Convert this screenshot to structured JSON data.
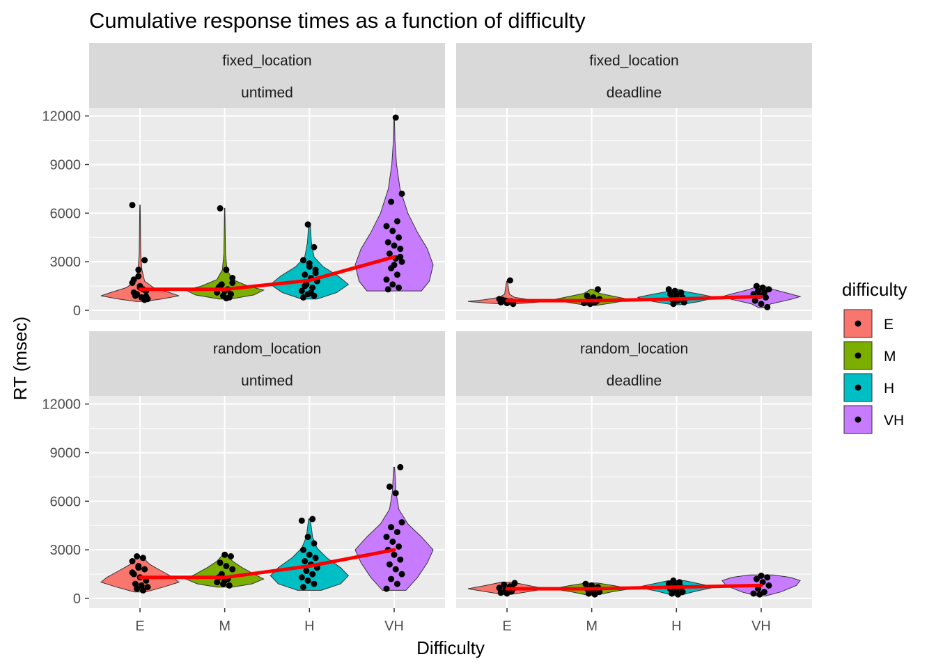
{
  "chart_data": {
    "type": "violin",
    "title": "Cumulative response times as a function of difficulty",
    "xlabel": "Difficulty",
    "ylabel": "RT (msec)",
    "categories": [
      "E",
      "M",
      "H",
      "VH"
    ],
    "yticks": [
      0,
      3000,
      6000,
      9000,
      12000
    ],
    "ylim": [
      -600,
      12500
    ],
    "legend": {
      "title": "difficulty",
      "position": "right",
      "entries": [
        {
          "label": "E",
          "color": "#F8766D"
        },
        {
          "label": "M",
          "color": "#7CAE00"
        },
        {
          "label": "H",
          "color": "#00BFC4"
        },
        {
          "label": "VH",
          "color": "#C77CFF"
        }
      ]
    },
    "mean_line_color": "#FF0000",
    "panels": [
      {
        "strip1": "fixed_location",
        "strip2": "untimed",
        "means": [
          1300,
          1300,
          1850,
          3300
        ],
        "violins": [
          {
            "cat": "E",
            "min": 550,
            "max": 6500,
            "profile": [
              [
                550,
                0.1
              ],
              [
                700,
                0.55
              ],
              [
                900,
                1
              ],
              [
                1100,
                0.75
              ],
              [
                1400,
                0.35
              ],
              [
                1800,
                0.12
              ],
              [
                2500,
                0.05
              ],
              [
                3500,
                0.02
              ],
              [
                6500,
                0.005
              ]
            ]
          },
          {
            "cat": "M",
            "min": 700,
            "max": 6300,
            "profile": [
              [
                700,
                0.15
              ],
              [
                950,
                0.75
              ],
              [
                1250,
                1
              ],
              [
                1500,
                0.6
              ],
              [
                1900,
                0.2
              ],
              [
                2500,
                0.06
              ],
              [
                3500,
                0.02
              ],
              [
                6300,
                0.005
              ]
            ]
          },
          {
            "cat": "H",
            "min": 700,
            "max": 5300,
            "profile": [
              [
                700,
                0.2
              ],
              [
                1100,
                0.7
              ],
              [
                1600,
                1
              ],
              [
                2100,
                0.75
              ],
              [
                2700,
                0.35
              ],
              [
                3300,
                0.12
              ],
              [
                4200,
                0.05
              ],
              [
                5300,
                0.02
              ]
            ]
          },
          {
            "cat": "VH",
            "min": 1200,
            "max": 11900,
            "profile": [
              [
                1200,
                0.7
              ],
              [
                1800,
                0.9
              ],
              [
                2800,
                1
              ],
              [
                3800,
                0.85
              ],
              [
                4800,
                0.6
              ],
              [
                6000,
                0.35
              ],
              [
                7500,
                0.15
              ],
              [
                9000,
                0.06
              ],
              [
                10500,
                0.02
              ],
              [
                11900,
                0.005
              ]
            ]
          }
        ],
        "points": [
          [
            6500,
            2500,
            3100,
            1900,
            1500,
            1200,
            900,
            800,
            700,
            1000,
            1300,
            1700,
            2100,
            650,
            1100,
            1400,
            850,
            950
          ],
          [
            6300,
            2500,
            2000,
            1600,
            1300,
            1100,
            900,
            800,
            1400,
            1200,
            1000,
            1500,
            750,
            1700
          ],
          [
            5300,
            3900,
            3100,
            2900,
            2500,
            2200,
            2000,
            1800,
            1600,
            1400,
            1200,
            1000,
            900,
            800,
            2700,
            2300,
            1500,
            1100
          ],
          [
            11900,
            7200,
            6700,
            5500,
            5200,
            4900,
            4500,
            4200,
            4000,
            3800,
            3500,
            3200,
            3000,
            2600,
            2200,
            1900,
            1600,
            1400,
            1300,
            2800,
            3300
          ]
        ]
      },
      {
        "strip1": "fixed_location",
        "strip2": "deadline",
        "means": [
          600,
          600,
          700,
          850
        ],
        "violins": [
          {
            "cat": "E",
            "min": 400,
            "max": 1800,
            "profile": [
              [
                400,
                0.1
              ],
              [
                450,
                0.5
              ],
              [
                550,
                1
              ],
              [
                650,
                0.6
              ],
              [
                800,
                0.2
              ],
              [
                1000,
                0.06
              ],
              [
                1800,
                0.01
              ]
            ]
          },
          {
            "cat": "M",
            "min": 300,
            "max": 1300,
            "profile": [
              [
                300,
                0.1
              ],
              [
                450,
                0.5
              ],
              [
                650,
                1
              ],
              [
                850,
                0.6
              ],
              [
                1050,
                0.2
              ],
              [
                1300,
                0.03
              ]
            ]
          },
          {
            "cat": "H",
            "min": 350,
            "max": 1300,
            "profile": [
              [
                350,
                0.1
              ],
              [
                550,
                0.6
              ],
              [
                800,
                1
              ],
              [
                1000,
                0.6
              ],
              [
                1150,
                0.25
              ],
              [
                1300,
                0.05
              ]
            ]
          },
          {
            "cat": "VH",
            "min": 150,
            "max": 1500,
            "profile": [
              [
                150,
                0.05
              ],
              [
                400,
                0.25
              ],
              [
                700,
                0.8
              ],
              [
                850,
                1
              ],
              [
                1050,
                0.7
              ],
              [
                1300,
                0.3
              ],
              [
                1500,
                0.08
              ]
            ]
          }
        ],
        "points": [
          [
            1850,
            700,
            600,
            550,
            500,
            450,
            400,
            650,
            550
          ],
          [
            1300,
            900,
            800,
            700,
            600,
            500,
            450,
            400,
            550
          ],
          [
            1300,
            1200,
            1100,
            1000,
            900,
            800,
            700,
            600,
            500,
            400
          ],
          [
            1500,
            1400,
            1300,
            1200,
            1100,
            1000,
            900,
            800,
            600,
            400,
            200
          ]
        ]
      },
      {
        "strip1": "random_location",
        "strip2": "untimed",
        "means": [
          1300,
          1300,
          2000,
          3000
        ],
        "violins": [
          {
            "cat": "E",
            "min": 400,
            "max": 2600,
            "profile": [
              [
                400,
                0.15
              ],
              [
                700,
                0.6
              ],
              [
                1000,
                1
              ],
              [
                1300,
                0.85
              ],
              [
                1700,
                0.55
              ],
              [
                2100,
                0.25
              ],
              [
                2600,
                0.05
              ]
            ]
          },
          {
            "cat": "M",
            "min": 700,
            "max": 2700,
            "profile": [
              [
                700,
                0.2
              ],
              [
                900,
                0.7
              ],
              [
                1200,
                1
              ],
              [
                1500,
                0.75
              ],
              [
                1900,
                0.45
              ],
              [
                2300,
                0.2
              ],
              [
                2700,
                0.05
              ]
            ]
          },
          {
            "cat": "H",
            "min": 500,
            "max": 4900,
            "profile": [
              [
                500,
                0.3
              ],
              [
                900,
                0.8
              ],
              [
                1400,
                1
              ],
              [
                1900,
                0.8
              ],
              [
                2500,
                0.45
              ],
              [
                3100,
                0.2
              ],
              [
                3800,
                0.08
              ],
              [
                4900,
                0.02
              ]
            ]
          },
          {
            "cat": "VH",
            "min": 500,
            "max": 8100,
            "profile": [
              [
                500,
                0.3
              ],
              [
                1300,
                0.6
              ],
              [
                2200,
                0.85
              ],
              [
                3000,
                1
              ],
              [
                3800,
                0.7
              ],
              [
                4600,
                0.35
              ],
              [
                5500,
                0.12
              ],
              [
                6500,
                0.05
              ],
              [
                8100,
                0.01
              ]
            ]
          }
        ],
        "points": [
          [
            2600,
            2500,
            2300,
            2000,
            1800,
            1500,
            1300,
            1100,
            900,
            800,
            700,
            600,
            500,
            1600,
            1900
          ],
          [
            2700,
            2600,
            2200,
            2000,
            1800,
            1500,
            1200,
            1000,
            900,
            800,
            1300,
            1100
          ],
          [
            4900,
            4800,
            3800,
            3400,
            3000,
            2700,
            2500,
            2300,
            2100,
            1900,
            1700,
            1500,
            1300,
            1100,
            900,
            700
          ],
          [
            8100,
            6900,
            6500,
            4700,
            4400,
            4100,
            3800,
            3500,
            3200,
            3000,
            2700,
            2400,
            2100,
            1800,
            1500,
            1200,
            900,
            600
          ]
        ]
      },
      {
        "strip1": "random_location",
        "strip2": "deadline",
        "means": [
          600,
          600,
          700,
          800
        ],
        "violins": [
          {
            "cat": "E",
            "min": 250,
            "max": 1000,
            "profile": [
              [
                250,
                0.1
              ],
              [
                400,
                0.5
              ],
              [
                600,
                1
              ],
              [
                800,
                0.55
              ],
              [
                1000,
                0.15
              ]
            ]
          },
          {
            "cat": "M",
            "min": 200,
            "max": 950,
            "profile": [
              [
                200,
                0.1
              ],
              [
                400,
                0.5
              ],
              [
                600,
                1
              ],
              [
                800,
                0.55
              ],
              [
                950,
                0.15
              ]
            ]
          },
          {
            "cat": "H",
            "min": 200,
            "max": 1100,
            "profile": [
              [
                200,
                0.1
              ],
              [
                450,
                0.5
              ],
              [
                700,
                1
              ],
              [
                900,
                0.6
              ],
              [
                1100,
                0.2
              ]
            ]
          },
          {
            "cat": "VH",
            "min": 150,
            "max": 1450,
            "profile": [
              [
                150,
                0.1
              ],
              [
                400,
                0.5
              ],
              [
                800,
                0.9
              ],
              [
                1100,
                1
              ],
              [
                1300,
                0.75
              ],
              [
                1450,
                0.3
              ]
            ]
          }
        ],
        "points": [
          [
            950,
            850,
            750,
            650,
            550,
            450,
            350,
            300,
            600
          ],
          [
            900,
            800,
            700,
            600,
            500,
            400,
            300,
            250
          ],
          [
            1100,
            1000,
            900,
            800,
            700,
            600,
            500,
            400,
            300,
            250
          ],
          [
            1400,
            1300,
            1200,
            1000,
            800,
            600,
            400,
            300,
            250
          ]
        ]
      }
    ]
  }
}
